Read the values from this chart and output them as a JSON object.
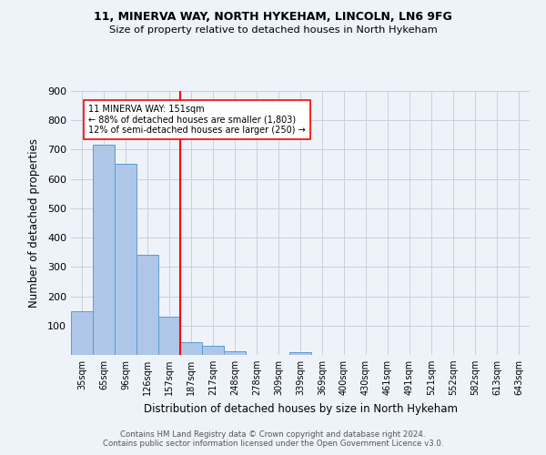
{
  "title1": "11, MINERVA WAY, NORTH HYKEHAM, LINCOLN, LN6 9FG",
  "title2": "Size of property relative to detached houses in North Hykeham",
  "xlabel": "Distribution of detached houses by size in North Hykeham",
  "ylabel": "Number of detached properties",
  "footer": "Contains HM Land Registry data © Crown copyright and database right 2024.\nContains public sector information licensed under the Open Government Licence v3.0.",
  "categories": [
    "35sqm",
    "65sqm",
    "96sqm",
    "126sqm",
    "157sqm",
    "187sqm",
    "217sqm",
    "248sqm",
    "278sqm",
    "309sqm",
    "339sqm",
    "369sqm",
    "400sqm",
    "430sqm",
    "461sqm",
    "491sqm",
    "521sqm",
    "552sqm",
    "582sqm",
    "613sqm",
    "643sqm"
  ],
  "values": [
    150,
    717,
    651,
    342,
    130,
    42,
    32,
    12,
    0,
    0,
    8,
    0,
    0,
    0,
    0,
    0,
    0,
    0,
    0,
    0,
    0
  ],
  "bar_color": "#AEC6E8",
  "bar_edge_color": "#5B9BD5",
  "bg_color": "#EEF3FA",
  "grid_color": "#C8D0DC",
  "vline_x": 4.5,
  "vline_color": "red",
  "annotation_text": "11 MINERVA WAY: 151sqm\n← 88% of detached houses are smaller (1,803)\n12% of semi-detached houses are larger (250) →",
  "annotation_box_color": "white",
  "annotation_box_edge": "red",
  "ylim": [
    0,
    900
  ],
  "yticks": [
    0,
    100,
    200,
    300,
    400,
    500,
    600,
    700,
    800,
    900
  ]
}
